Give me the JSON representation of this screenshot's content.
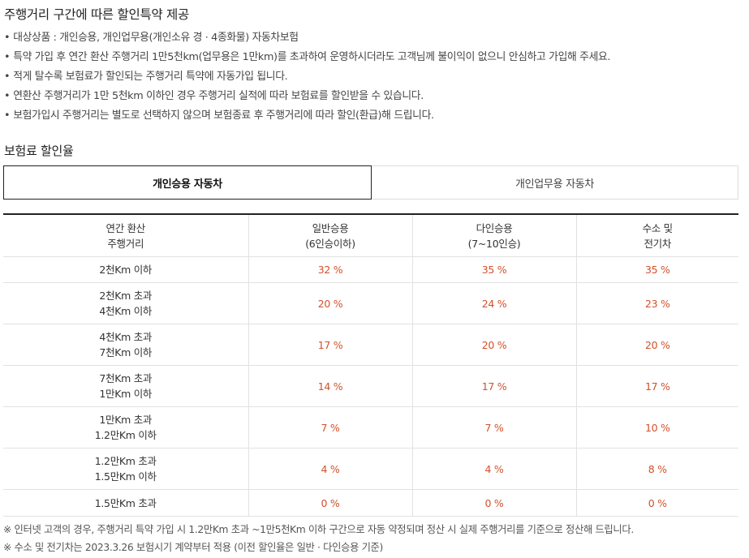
{
  "header": {
    "title": "주행거리 구간에 따른 할인특약 제공"
  },
  "bullets": [
    "대상상품 : 개인승용, 개인업무용(개인소유 경 · 4종화물) 자동차보험",
    "특약 가입 후 연간 환산 주행거리 1만5천km(업무용은 1만km)를 초과하여 운영하시더라도 고객님께 불이익이 없으니 안심하고 가입해 주세요.",
    "적게 탈수록 보험료가 할인되는 주행거리 특약에 자동가입 됩니다.",
    "연환산 주행거리가 1만 5천km 이하인 경우 주행거리 실적에 따라 보험료를 할인받을 수 있습니다.",
    "보험가입시 주행거리는 별도로 선택하지 않으며 보험종료 후 주행거리에 따라 할인(환급)해 드립니다."
  ],
  "bullet_char": "•",
  "section": {
    "title": "보험료 할인율"
  },
  "tabs": [
    {
      "label": "개인승용 자동차",
      "active": true
    },
    {
      "label": "개인업무용 자동차",
      "active": false
    }
  ],
  "table": {
    "headers": [
      [
        "연간 환산",
        "주행거리"
      ],
      [
        "일반승용",
        "(6인승이하)"
      ],
      [
        "다인승용",
        "(7~10인승)"
      ],
      [
        "수소 및",
        "전기차"
      ]
    ],
    "rows": [
      {
        "label": [
          "2천Km 이하"
        ],
        "values": [
          "32 %",
          "35 %",
          "35 %"
        ]
      },
      {
        "label": [
          "2천Km 초과",
          "4천Km 이하"
        ],
        "values": [
          "20 %",
          "24 %",
          "23 %"
        ]
      },
      {
        "label": [
          "4천Km 초과",
          "7천Km 이하"
        ],
        "values": [
          "17 %",
          "20 %",
          "20 %"
        ]
      },
      {
        "label": [
          "7천Km 초과",
          "1만Km 이하"
        ],
        "values": [
          "14 %",
          "17 %",
          "17 %"
        ]
      },
      {
        "label": [
          "1만Km 초과",
          "1.2만Km 이하"
        ],
        "values": [
          "7 %",
          "7 %",
          "10 %"
        ]
      },
      {
        "label": [
          "1.2만Km 초과",
          "1.5만Km 이하"
        ],
        "values": [
          "4 %",
          "4 %",
          "8 %"
        ]
      },
      {
        "label": [
          "1.5만Km 초과"
        ],
        "values": [
          "0 %",
          "0 %",
          "0 %"
        ]
      }
    ]
  },
  "notes": [
    "※ 인터넷 고객의 경우, 주행거리 특약 가입 시 1.2만Km 초과 ~1만5천Km 이하 구간으로 자동 약정되며 정산 시 실제 주행거리를 기준으로 정산해 드립니다.",
    "※ 수소 및 전기차는 2023.3.26 보험시기 계약부터 적용 (이전 할인율은 일반 · 다인승용 기준)"
  ],
  "colors": {
    "rate": "#d2502a",
    "active_tab_border": "#222222"
  }
}
